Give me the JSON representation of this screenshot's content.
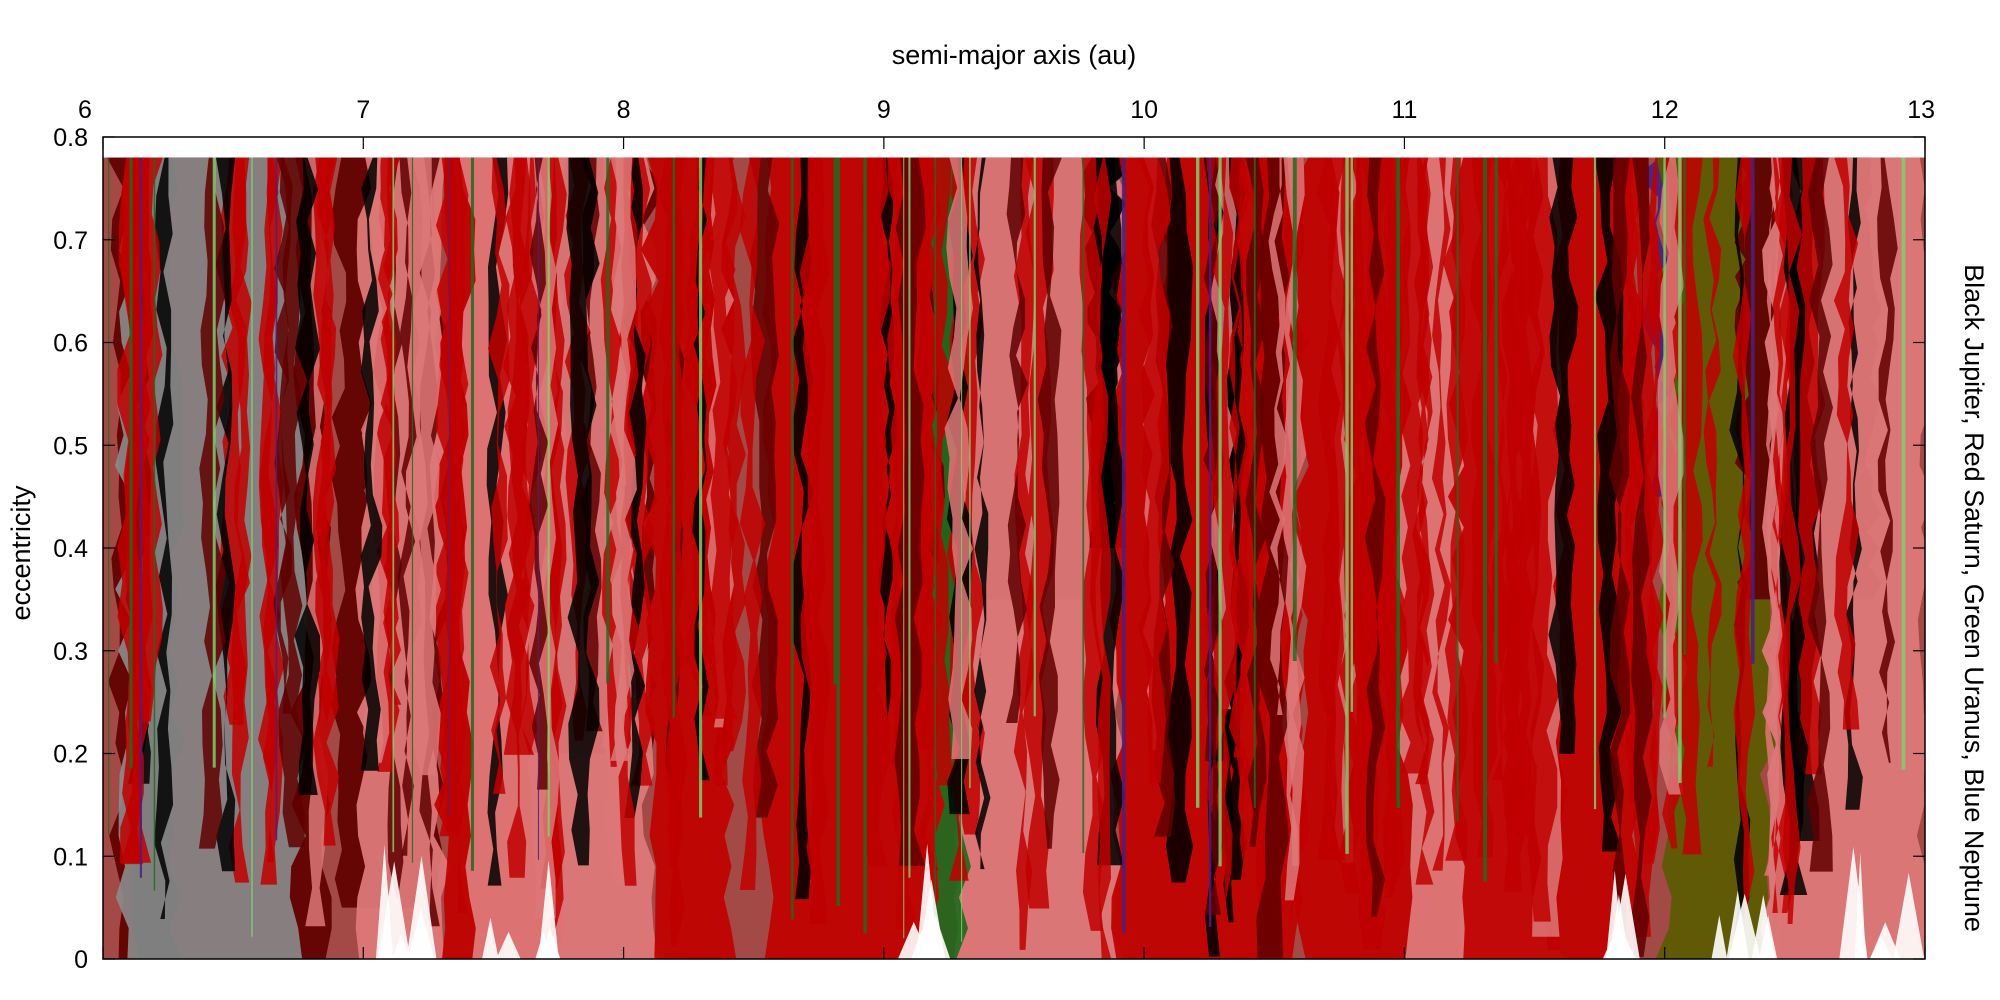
{
  "chart_data": {
    "type": "area",
    "xlabel": "semi-major axis (au)",
    "ylabel": "eccentricity",
    "right_label": "Black Jupiter, Red Saturn, Green Uranus, Blue Neptune",
    "xlim": [
      6,
      13
    ],
    "ylim": [
      0,
      0.8
    ],
    "data_top": 0.78,
    "x_ticks": [
      "6",
      "7",
      "8",
      "9",
      "10",
      "11",
      "12",
      "13"
    ],
    "y_ticks": [
      "0",
      "0.1",
      "0.2",
      "0.3",
      "0.4",
      "0.5",
      "0.6",
      "0.7",
      "0.8"
    ],
    "grid": false,
    "colors": {
      "background": "#a34a47",
      "jupiter": "#000000",
      "saturn_strong": "#c00000",
      "saturn_dark": "#600000",
      "saturn_light": "#dd7878",
      "gray": "#8a8a8a",
      "uranus": "#1f6b1f",
      "uranus_light": "#7fcf6f",
      "olive": "#5a5a00",
      "neptune": "#4a1f80"
    },
    "regions": [
      {
        "planet": "Saturn-dark",
        "x0": 6.05,
        "x1": 6.85,
        "e_low": 0.0
      },
      {
        "planet": "Jupiter",
        "x0": 6.12,
        "x1": 6.28,
        "e_low": 0.0
      },
      {
        "planet": "Gray",
        "x0": 6.08,
        "x1": 6.75,
        "e_low": 0.0
      },
      {
        "planet": "Saturn-dark",
        "x0": 6.9,
        "x1": 7.3,
        "e_low": 0.05
      },
      {
        "planet": "Saturn-light",
        "x0": 7.0,
        "x1": 7.3,
        "e_low": 0.0
      },
      {
        "planet": "Saturn-strong",
        "x0": 7.3,
        "x1": 7.75,
        "e_low": 0.0
      },
      {
        "planet": "Saturn-dark",
        "x0": 7.75,
        "x1": 8.1,
        "e_low": 0.2
      },
      {
        "planet": "Saturn-light",
        "x0": 7.4,
        "x1": 8.1,
        "e_low": 0.0
      },
      {
        "planet": "Saturn-strong",
        "x0": 8.1,
        "x1": 8.4,
        "e_low": 0.0
      },
      {
        "planet": "Saturn-strong",
        "x0": 8.55,
        "x1": 9.3,
        "e_low": 0.0
      },
      {
        "planet": "Saturn-dark",
        "x0": 9.2,
        "x1": 9.9,
        "e_low": 0.35
      },
      {
        "planet": "Saturn-light",
        "x0": 9.3,
        "x1": 9.9,
        "e_low": 0.0
      },
      {
        "planet": "Uranus",
        "x0": 9.2,
        "x1": 9.3,
        "e_low": 0.0
      },
      {
        "planet": "Jupiter",
        "x0": 9.8,
        "x1": 9.9,
        "e_low": 0.4
      },
      {
        "planet": "Saturn-strong",
        "x0": 9.9,
        "x1": 10.6,
        "e_low": 0.0
      },
      {
        "planet": "Saturn-strong",
        "x0": 10.6,
        "x1": 11.2,
        "e_low": 0.0
      },
      {
        "planet": "Saturn-light",
        "x0": 11.0,
        "x1": 11.6,
        "e_low": 0.0
      },
      {
        "planet": "Saturn-strong",
        "x0": 11.2,
        "x1": 11.9,
        "e_low": 0.0
      },
      {
        "planet": "Neptune",
        "x0": 11.95,
        "x1": 12.0,
        "e_low": 0.45
      },
      {
        "planet": "Olive",
        "x0": 12.0,
        "x1": 12.4,
        "e_low": 0.0
      },
      {
        "planet": "Saturn-dark",
        "x0": 12.3,
        "x1": 12.8,
        "e_low": 0.35
      },
      {
        "planet": "Saturn-light",
        "x0": 12.4,
        "x1": 13.0,
        "e_low": 0.0
      }
    ]
  }
}
